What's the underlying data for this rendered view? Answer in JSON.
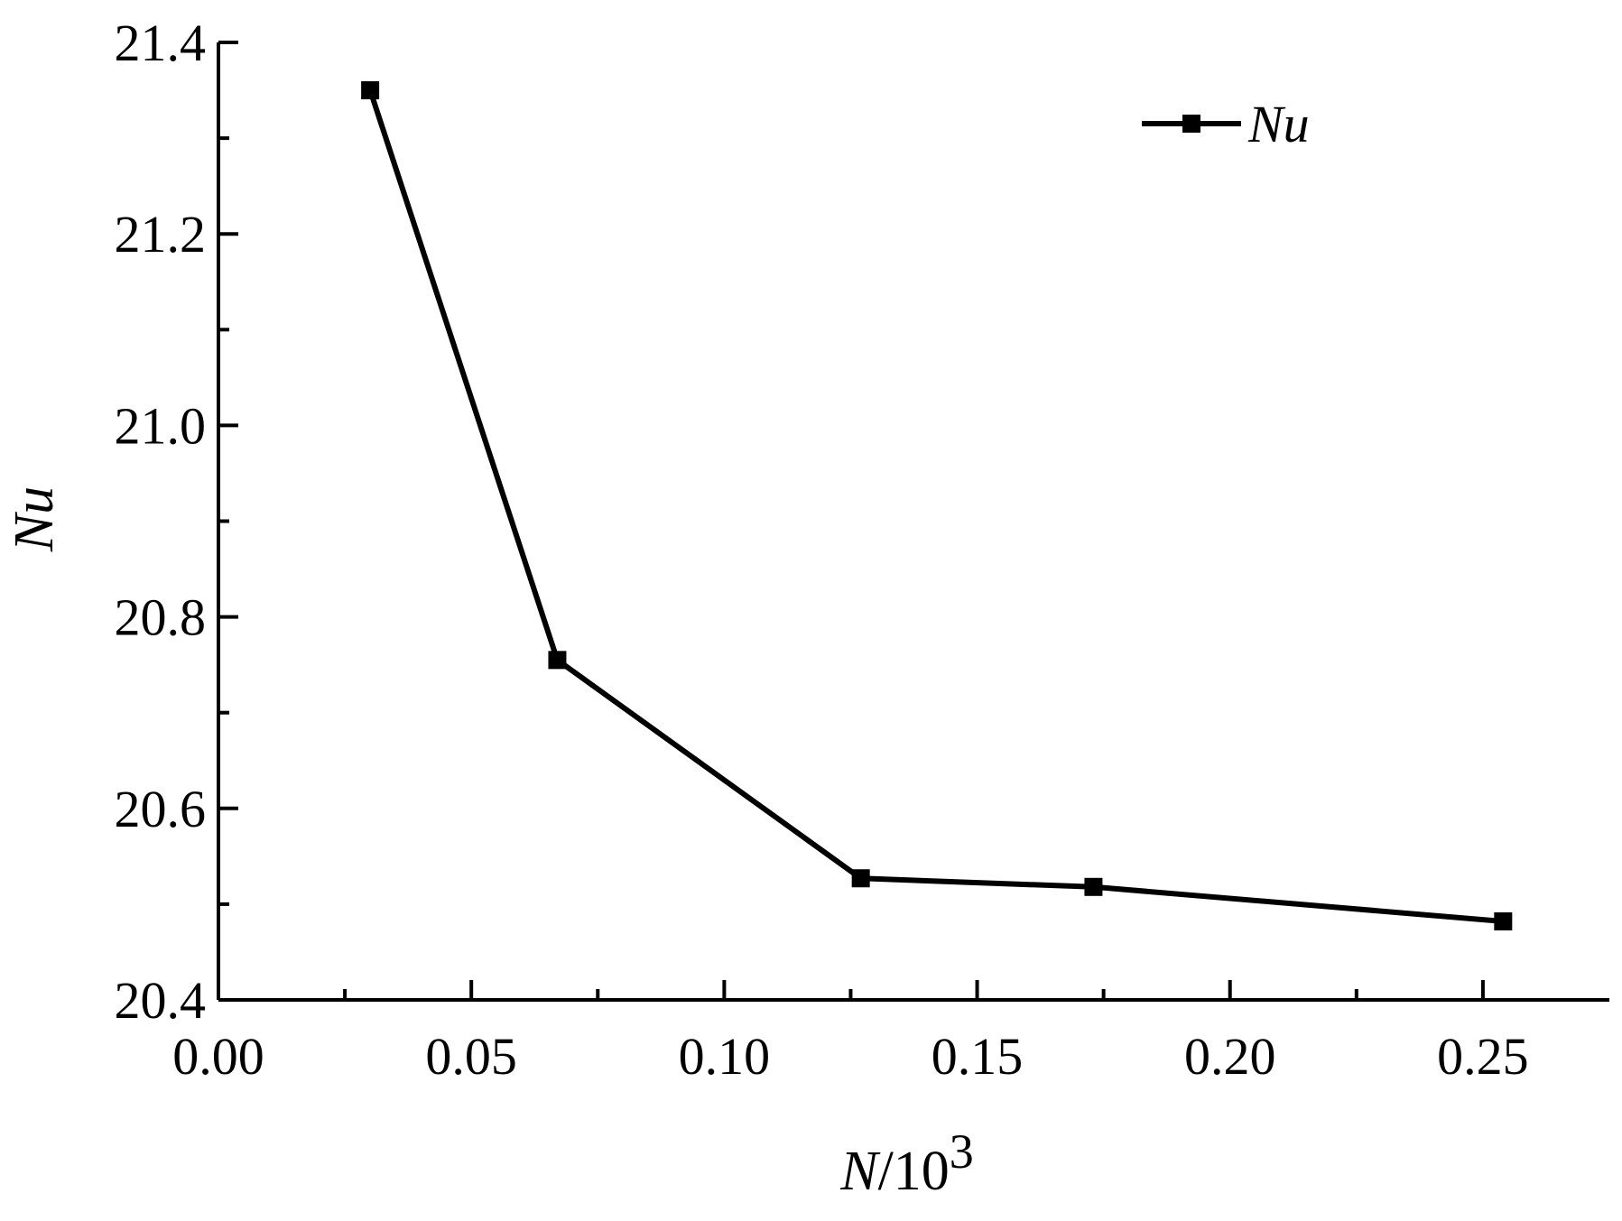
{
  "chart_data": {
    "type": "line",
    "title": "",
    "xlabel": {
      "italic": "N",
      "rest": "/10",
      "superscript": "3"
    },
    "ylabel": "Nu",
    "xlim": [
      0,
      0.275
    ],
    "ylim": [
      20.4,
      21.4
    ],
    "x_ticks": [
      "0.00",
      "0.05",
      "0.10",
      "0.15",
      "0.20",
      "0.25"
    ],
    "y_ticks": [
      "20.4",
      "20.6",
      "20.8",
      "21.0",
      "21.2",
      "21.4"
    ],
    "legend": {
      "position": "top-right",
      "entries": [
        "Nu"
      ]
    },
    "grid": false,
    "series": [
      {
        "name": "Nu",
        "color": "#000000",
        "marker": "square",
        "x": [
          0.03,
          0.067,
          0.127,
          0.173,
          0.254
        ],
        "y": [
          21.35,
          20.755,
          20.527,
          20.518,
          20.482
        ]
      }
    ]
  }
}
